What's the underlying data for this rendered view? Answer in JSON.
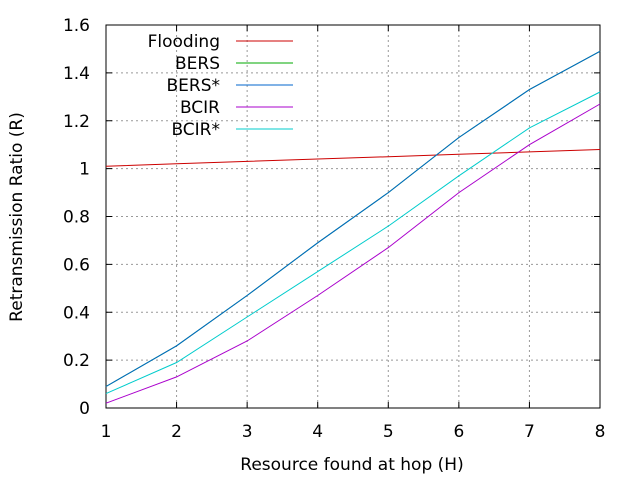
{
  "chart_data": {
    "type": "line",
    "title": "",
    "xlabel": "Resource found at hop (H)",
    "ylabel": "Retransmission Ratio (R)",
    "xlim": [
      1,
      8
    ],
    "ylim": [
      0,
      1.6
    ],
    "x": [
      1,
      2,
      3,
      4,
      5,
      6,
      7,
      8
    ],
    "x_ticks": [
      "1",
      "2",
      "3",
      "4",
      "5",
      "6",
      "7",
      "8"
    ],
    "y_ticks": [
      "0",
      "0.2",
      "0.4",
      "0.6",
      "0.8",
      "1",
      "1.2",
      "1.4",
      "1.6"
    ],
    "grid": true,
    "legend_position": "top-left",
    "series": [
      {
        "name": "Flooding",
        "color": "#cc0000",
        "values": [
          1.01,
          1.02,
          1.03,
          1.04,
          1.05,
          1.06,
          1.07,
          1.08
        ]
      },
      {
        "name": "BERS",
        "color": "#00aa00",
        "values": [
          0.09,
          0.26,
          0.47,
          0.69,
          0.9,
          1.13,
          1.33,
          1.49
        ]
      },
      {
        "name": "BERS*",
        "color": "#0066cc",
        "values": [
          0.09,
          0.26,
          0.47,
          0.69,
          0.9,
          1.13,
          1.33,
          1.49
        ]
      },
      {
        "name": "BCIR",
        "color": "#aa00cc",
        "values": [
          0.02,
          0.13,
          0.28,
          0.47,
          0.67,
          0.9,
          1.1,
          1.27
        ]
      },
      {
        "name": "BCIR*",
        "color": "#00cccc",
        "values": [
          0.06,
          0.19,
          0.38,
          0.57,
          0.76,
          0.97,
          1.17,
          1.32
        ]
      }
    ]
  }
}
